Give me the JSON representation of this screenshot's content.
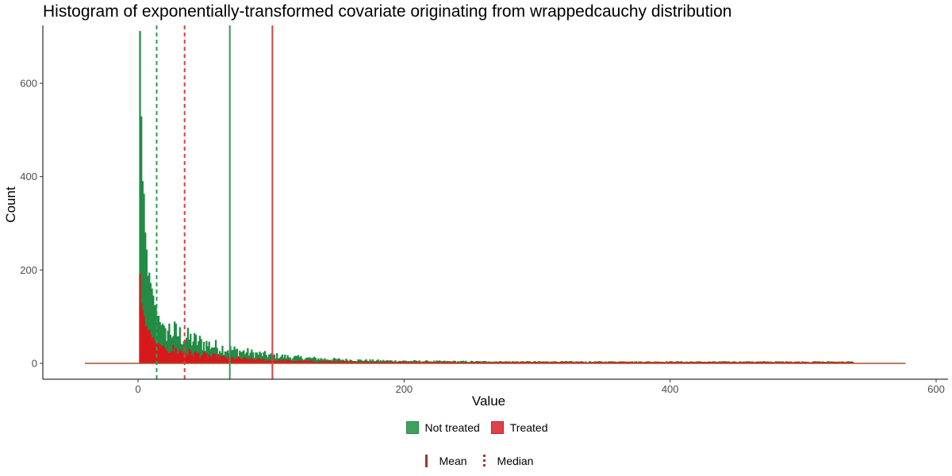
{
  "chart_data": {
    "type": "bar",
    "subtype": "histogram",
    "title": "Histogram of exponentially-transformed covariate originating from wrappedcauchy distribution",
    "xlabel": "Value",
    "ylabel": "Count",
    "xlim": [
      -70,
      600
    ],
    "ylim": [
      -35,
      720
    ],
    "x_ticks": [
      0,
      200,
      400,
      600
    ],
    "y_ticks": [
      0,
      200,
      400,
      600
    ],
    "grid": false,
    "bin_width": 1,
    "series": [
      {
        "name": "Not treated",
        "color": "#238b45",
        "legend_color": "#41a05b",
        "hist_start": 1,
        "hist_end": 538,
        "peak_bins": [
          690,
          550,
          380,
          330,
          270,
          235,
          200,
          180,
          165,
          150,
          138,
          128,
          118,
          108,
          100,
          93,
          86,
          80,
          75,
          70
        ],
        "tail_level": 3,
        "tail_scale": 48
      },
      {
        "name": "Treated",
        "color": "#d7191c",
        "legend_color": "#dc4246",
        "hist_start": 1,
        "hist_end": 538,
        "peak_bins": [
          180,
          140,
          110,
          95,
          85,
          78,
          72,
          66,
          60,
          56,
          52,
          48,
          45,
          42,
          40,
          38,
          36,
          34,
          32,
          30
        ],
        "tail_level": 2.5,
        "tail_scale": 38
      }
    ],
    "baseline": {
      "x_range": [
        -40,
        577
      ],
      "color": "#a0522d"
    },
    "reference_lines": [
      {
        "series": "Not treated",
        "stat": "Mean",
        "x": 69,
        "style": "solid",
        "color": "#41955a"
      },
      {
        "series": "Not treated",
        "stat": "Median",
        "x": 14,
        "style": "dashed",
        "color": "#2e9d50"
      },
      {
        "series": "Treated",
        "stat": "Mean",
        "x": 101,
        "style": "solid",
        "color": "#d94040"
      },
      {
        "series": "Treated",
        "stat": "Median",
        "x": 35,
        "style": "dashed",
        "color": "#d94040"
      }
    ],
    "legend": {
      "placement": "bottom",
      "fill_items": [
        {
          "label": "Not treated",
          "color": "#41a05b"
        },
        {
          "label": "Treated",
          "color": "#dc4246"
        }
      ],
      "line_items": [
        {
          "label": "Mean",
          "style": "solid"
        },
        {
          "label": "Median",
          "style": "dashed"
        }
      ]
    }
  }
}
